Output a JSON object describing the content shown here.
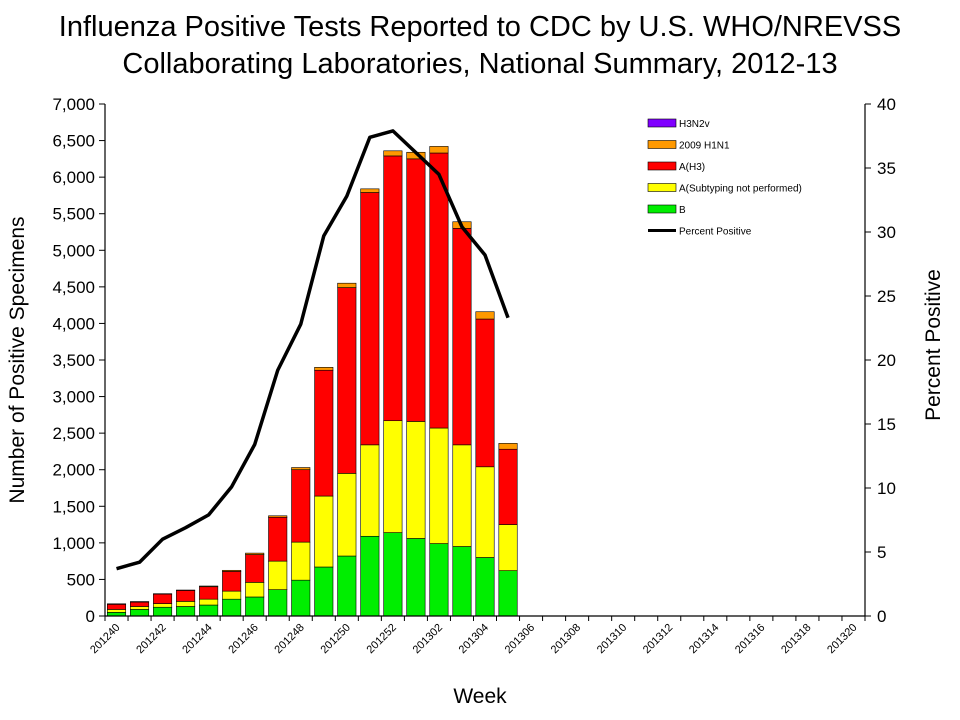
{
  "chart_data": {
    "type": "bar",
    "title_line1": "Influenza Positive Tests Reported to CDC by U.S. WHO/NREVSS",
    "title_line2": "Collaborating Laboratories, National Summary, 2012-13",
    "xlabel": "Week",
    "ylabel": "Number of Positive Specimens",
    "y2label": "Percent Positive",
    "ylim": [
      0,
      7000
    ],
    "y2lim": [
      0,
      40
    ],
    "y_ticks": [
      "0",
      "500",
      "1,000",
      "1,500",
      "2,000",
      "2,500",
      "3,000",
      "3,500",
      "4,000",
      "4,500",
      "5,000",
      "5,500",
      "6,000",
      "6,500",
      "7,000"
    ],
    "y2_ticks": [
      "0",
      "5",
      "10",
      "15",
      "20",
      "25",
      "30",
      "35",
      "40"
    ],
    "weeks": [
      "201240",
      "201241",
      "201242",
      "201243",
      "201244",
      "201245",
      "201246",
      "201247",
      "201248",
      "201249",
      "201250",
      "201251",
      "201252",
      "201301",
      "201302",
      "201303",
      "201304",
      "201305",
      "201306",
      "201307",
      "201308",
      "201309",
      "201310",
      "201311",
      "201312",
      "201313",
      "201314",
      "201315",
      "201316",
      "201317",
      "201318",
      "201319",
      "201320"
    ],
    "x_tick_labels": [
      "201240",
      "201242",
      "201244",
      "201246",
      "201248",
      "201250",
      "201252",
      "201302",
      "201304",
      "201306",
      "201308",
      "201310",
      "201312",
      "201314",
      "201316",
      "201318",
      "201320"
    ],
    "series": [
      {
        "name": "B",
        "color": "#00ee00",
        "values": [
          50,
          90,
          120,
          130,
          150,
          230,
          260,
          360,
          490,
          670,
          820,
          1090,
          1140,
          1060,
          990,
          950,
          800,
          620
        ]
      },
      {
        "name": "A(Subtyping not performed)",
        "color": "#ffff00",
        "values": [
          40,
          40,
          50,
          70,
          80,
          110,
          200,
          390,
          520,
          970,
          1130,
          1250,
          1530,
          1600,
          1580,
          1390,
          1240,
          630
        ]
      },
      {
        "name": "A(H3)",
        "color": "#ff0000",
        "values": [
          70,
          60,
          130,
          150,
          170,
          270,
          380,
          600,
          990,
          1720,
          2540,
          3450,
          3620,
          3590,
          3760,
          2960,
          2020,
          1030
        ]
      },
      {
        "name": "2009 H1N1",
        "color": "#ff9900",
        "values": [
          5,
          5,
          5,
          5,
          10,
          15,
          20,
          20,
          30,
          40,
          60,
          50,
          70,
          90,
          90,
          90,
          100,
          80
        ]
      },
      {
        "name": "H3N2v",
        "color": "#8000ff",
        "values": [
          2,
          2,
          0,
          0,
          0,
          0,
          0,
          0,
          0,
          0,
          0,
          0,
          0,
          0,
          0,
          0,
          0,
          0
        ]
      }
    ],
    "legend_order": [
      "H3N2v",
      "2009 H1N1",
      "A(H3)",
      "A(Subtyping not performed)",
      "B",
      "Percent Positive"
    ],
    "line": {
      "name": "Percent Positive",
      "color": "#000000",
      "values": [
        3.7,
        4.2,
        6.0,
        6.9,
        7.9,
        10.1,
        13.4,
        19.2,
        22.8,
        29.7,
        32.8,
        37.4,
        37.9,
        36.2,
        34.5,
        30.4,
        28.2,
        23.3
      ]
    },
    "legend_position": "top-right"
  }
}
